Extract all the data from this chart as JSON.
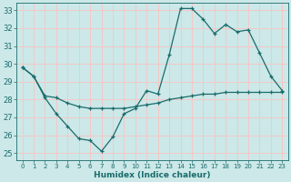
{
  "xlabel": "Humidex (Indice chaleur)",
  "background_color": "#cce8e8",
  "grid_color": "#f5c8c8",
  "line_color": "#1a6b6b",
  "ylim": [
    24.6,
    33.4
  ],
  "xlim": [
    -0.5,
    23.5
  ],
  "yticks": [
    25,
    26,
    27,
    28,
    29,
    30,
    31,
    32,
    33
  ],
  "xticks": [
    0,
    1,
    2,
    3,
    4,
    5,
    6,
    7,
    8,
    9,
    10,
    11,
    12,
    13,
    14,
    15,
    16,
    17,
    18,
    19,
    20,
    21,
    22,
    23
  ],
  "line1_x": [
    0,
    1,
    2,
    3,
    4,
    5,
    6,
    7,
    8,
    9,
    10,
    11,
    12,
    13,
    14,
    15,
    16,
    17,
    18,
    19,
    20,
    21,
    22,
    23
  ],
  "line1_y": [
    29.8,
    29.3,
    28.1,
    27.2,
    26.5,
    25.8,
    25.7,
    25.1,
    25.9,
    27.2,
    27.5,
    28.5,
    28.3,
    30.5,
    33.1,
    33.1,
    32.5,
    31.7,
    32.2,
    31.8,
    31.9,
    30.6,
    29.3,
    28.5
  ],
  "line2_x": [
    0,
    1,
    2,
    3,
    4,
    5,
    6,
    7,
    8,
    9,
    10,
    11,
    12,
    13,
    14,
    15,
    16,
    17,
    18,
    19,
    20,
    21,
    22,
    23
  ],
  "line2_y": [
    29.8,
    29.3,
    28.2,
    28.1,
    27.8,
    27.6,
    27.5,
    27.5,
    27.5,
    27.5,
    27.6,
    27.7,
    27.8,
    28.0,
    28.1,
    28.2,
    28.3,
    28.3,
    28.4,
    28.4,
    28.4,
    28.4,
    28.4,
    28.4
  ],
  "tick_fontsize": 6,
  "xlabel_fontsize": 6.5,
  "marker": "+",
  "markersize": 3,
  "linewidth": 0.9
}
